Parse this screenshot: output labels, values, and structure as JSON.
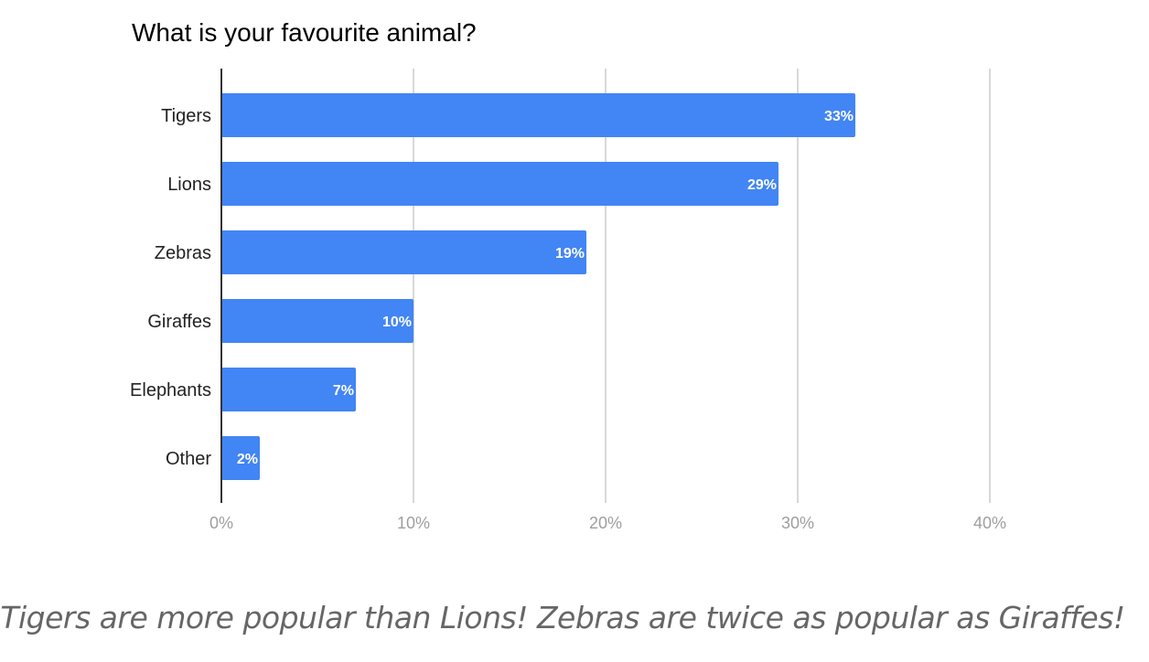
{
  "chart_data": {
    "type": "bar",
    "orientation": "horizontal",
    "title": "What is your favourite animal?",
    "categories": [
      "Tigers",
      "Lions",
      "Zebras",
      "Giraffes",
      "Elephants",
      "Other"
    ],
    "values": [
      33,
      29,
      19,
      10,
      7,
      2
    ],
    "data_labels": [
      "33%",
      "29%",
      "19%",
      "10%",
      "7%",
      "2%"
    ],
    "xlim": [
      0,
      40
    ],
    "x_ticks": [
      0,
      10,
      20,
      30,
      40
    ],
    "x_tick_labels": [
      "0%",
      "10%",
      "20%",
      "30%",
      "40%"
    ],
    "xlabel": "",
    "ylabel": "",
    "grid": true,
    "legend": "none",
    "bar_color": "#4285F4"
  },
  "caption": "Tigers are more popular than Lions! Zebras are twice as popular as Giraffes!",
  "colors": {
    "grid": "#cccccc",
    "axis": "#333333",
    "tick_label": "#9e9e9e",
    "category_label": "#222222",
    "data_label": "#ffffff"
  }
}
